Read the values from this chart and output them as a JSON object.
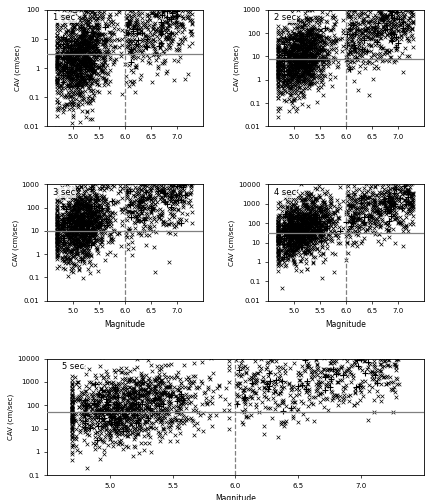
{
  "panels": [
    {
      "label": "1 sec",
      "ylim": [
        0.01,
        100
      ],
      "yticks": [
        0.01,
        0.1,
        1,
        10,
        100
      ],
      "threshold": 3.0,
      "ylabel": "CAV (cm/sec)"
    },
    {
      "label": "2 sec",
      "ylim": [
        0.01,
        1000
      ],
      "yticks": [
        0.01,
        0.1,
        1,
        10,
        100,
        1000
      ],
      "threshold": 8.0,
      "ylabel": "CAV (cm/sec)"
    },
    {
      "label": "3 sec",
      "ylim": [
        0.01,
        1000
      ],
      "yticks": [
        0.01,
        0.1,
        1,
        10,
        100,
        1000
      ],
      "threshold": 10.0,
      "ylabel": "CAV (cm/sec)"
    },
    {
      "label": "4 sec",
      "ylim": [
        0.01,
        10000
      ],
      "yticks": [
        0.01,
        0.1,
        1,
        10,
        100,
        1000,
        10000
      ],
      "threshold": 30.0,
      "ylabel": "CAV (cm/sec)"
    },
    {
      "label": "5 sec",
      "ylim": [
        0.1,
        10000
      ],
      "yticks": [
        0.1,
        1,
        10,
        100,
        1000,
        10000
      ],
      "threshold": 50.0,
      "ylabel": "CAV (cm/sec)"
    }
  ],
  "xlim": [
    4.5,
    7.5
  ],
  "xticks": [
    5.0,
    5.5,
    6.0,
    6.5,
    7.0
  ],
  "vline_x": 6.0,
  "xlabel": "Magnitude",
  "marker_color": "black",
  "line_color": "gray",
  "background_color": "white",
  "seed": 42,
  "n_records": 1726,
  "n_events": 105
}
